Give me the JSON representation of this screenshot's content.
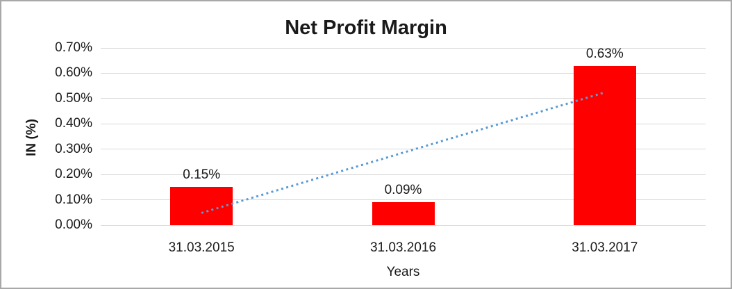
{
  "chart_data": {
    "type": "bar",
    "title": "Net Profit Margin",
    "xlabel": "Years",
    "ylabel": "IN (%)",
    "categories": [
      "31.03.2015",
      "31.03.2016",
      "31.03.2017"
    ],
    "values": [
      0.15,
      0.09,
      0.63
    ],
    "data_labels": [
      "0.15%",
      "0.09%",
      "0.63%"
    ],
    "y_ticks": [
      "0.00%",
      "0.10%",
      "0.20%",
      "0.30%",
      "0.40%",
      "0.50%",
      "0.60%",
      "0.70%"
    ],
    "y_tick_values": [
      0,
      0.1,
      0.2,
      0.3,
      0.4,
      0.5,
      0.6,
      0.7
    ],
    "ylim": [
      0,
      0.7
    ],
    "grid": true,
    "legend": false,
    "bar_color": "#FF0000",
    "gridline_color": "#d9d9d9",
    "trendline": {
      "type": "linear",
      "style": "dotted",
      "color": "#5B9BD5",
      "start_value": 0.047,
      "end_value": 0.523,
      "start_category_index": 0,
      "end_category_index": 2
    }
  }
}
